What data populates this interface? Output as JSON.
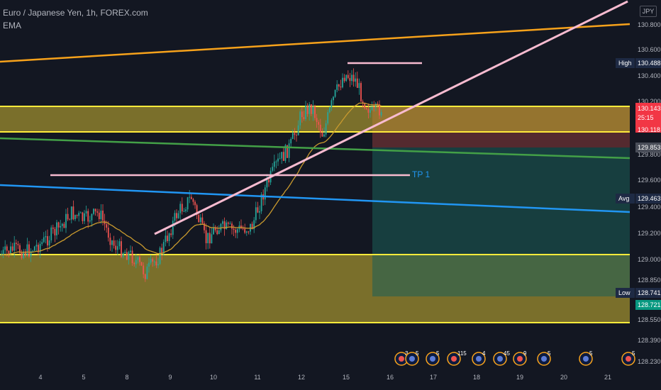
{
  "legend": {
    "symbol": "Euro / Japanese Yen, 1h, FOREX.com",
    "indicator": "EMA"
  },
  "currency_badge": "JPY",
  "chart_data": {
    "type": "candlestick",
    "price_axis": [
      "130.800",
      "130.600",
      "130.400",
      "130.200",
      "129.800",
      "129.600",
      "129.400",
      "129.200",
      "129.000",
      "128.850",
      "128.550",
      "128.390",
      "128.230"
    ],
    "price_ticks": [
      130.8,
      130.6,
      130.4,
      130.2,
      129.8,
      129.6,
      129.4,
      129.2,
      129.0,
      128.85,
      128.55,
      128.39,
      128.23
    ],
    "date_axis": [
      "4",
      "5",
      "8",
      "9",
      "10",
      "11",
      "12",
      "15",
      "16",
      "17",
      "18",
      "19",
      "20",
      "21"
    ],
    "price_tags": {
      "high": {
        "label": "High",
        "value": "130.488"
      },
      "current": {
        "value": "130.143",
        "countdown": "25:15"
      },
      "entry": {
        "value": "130.118"
      },
      "stop": {
        "value": "129.853"
      },
      "avg": {
        "label": "Avg",
        "value": "129.463"
      },
      "low": {
        "label": "Low",
        "value": "128.741"
      },
      "target": {
        "value": "128.721"
      }
    },
    "annotations": {
      "tp1": "TP 1"
    },
    "event_badges": [
      "3",
      "5",
      "5",
      "115",
      "4",
      "45",
      "9",
      "5",
      "5",
      "5"
    ],
    "colors": {
      "background": "#131722",
      "up": "#26a69a",
      "down": "#ef5350",
      "ema": "#c99a2e",
      "zone": "#a2922f",
      "zone_border": "#ffeb3b",
      "orange_line": "#f7a21b",
      "pink_line": "#f8bbd0",
      "green_line": "#43a047",
      "blue_line": "#2196f3",
      "profit_zone": "#1b5e58",
      "loss_zone": "#8b3a3a"
    }
  }
}
